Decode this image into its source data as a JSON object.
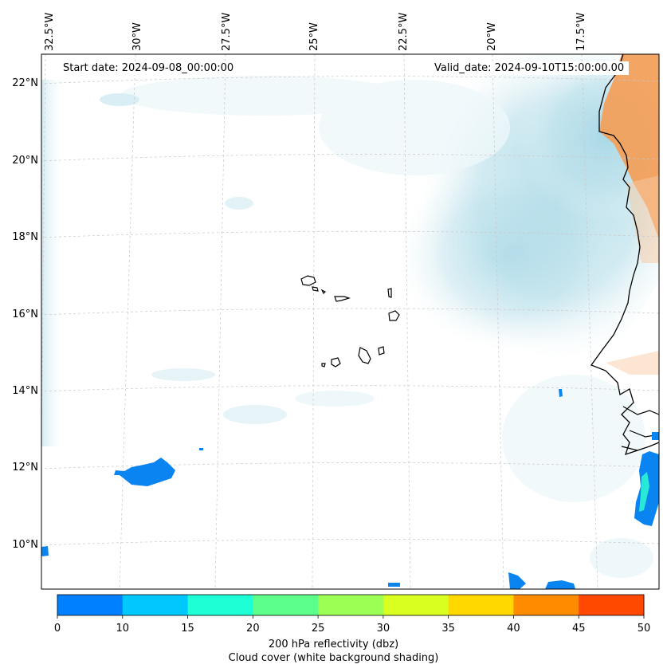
{
  "map": {
    "start_date_text": "Start date: 2024-09-08_00:00:00",
    "valid_date_text": "Valid_date: 2024-09-10T15:00:00.00",
    "lon_labels": [
      "32.5°W",
      "30°W",
      "27.5°W",
      "25°W",
      "22.5°W",
      "20°W",
      "17.5°W"
    ],
    "lat_labels": [
      "22°N",
      "20°N",
      "18°N",
      "16°N",
      "14°N",
      "12°N",
      "10°N"
    ]
  },
  "colorbar": {
    "ticks": [
      "0",
      "10",
      "15",
      "20",
      "25",
      "30",
      "35",
      "40",
      "45",
      "50"
    ],
    "colors": [
      "#0080ff",
      "#00c8ff",
      "#1effd6",
      "#5cff8c",
      "#9cff54",
      "#d8ff20",
      "#ffd800",
      "#ff8c00",
      "#ff4800"
    ],
    "label_line1": "200 hPa reflectivity (dbz)",
    "label_line2": "Cloud cover (white background shading)"
  },
  "colors": {
    "cloud": "#a8d8e6",
    "land_warm": "#f2a05c",
    "reflectivity_low": "#0a84f0",
    "coast": "#000000"
  }
}
